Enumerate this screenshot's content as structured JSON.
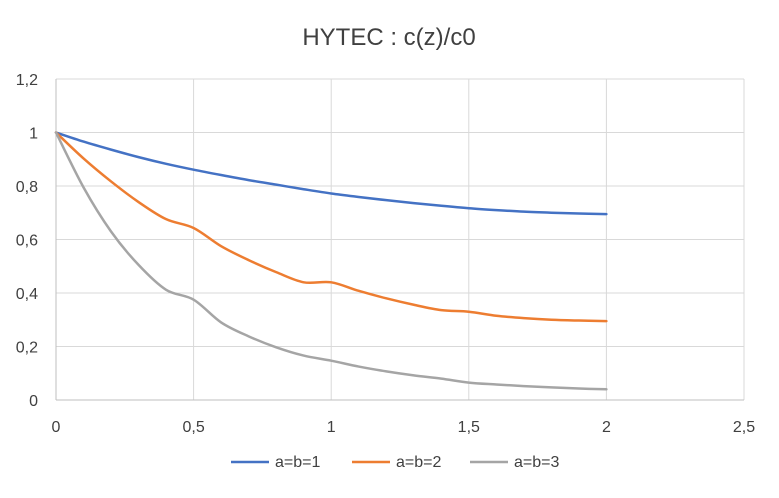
{
  "chart_data": {
    "type": "line",
    "title": "HYTEC : c(z)/c0",
    "xlabel": "",
    "ylabel": "",
    "xlim": [
      0,
      2.5
    ],
    "ylim": [
      0,
      1.2
    ],
    "x_ticks": [
      0,
      0.5,
      1,
      1.5,
      2,
      2.5
    ],
    "x_tick_labels": [
      "0",
      "0,5",
      "1",
      "1,5",
      "2",
      "2,5"
    ],
    "y_ticks": [
      0,
      0.2,
      0.4,
      0.6,
      0.8,
      1,
      1.2
    ],
    "y_tick_labels": [
      "0",
      "0,2",
      "0,4",
      "0,6",
      "0,8",
      "1",
      "1,2"
    ],
    "grid": "vertical and horizontal major gridlines",
    "legend_position": "bottom",
    "x": [
      0,
      0.1,
      0.2,
      0.3,
      0.4,
      0.5,
      0.6,
      0.7,
      0.8,
      0.9,
      1.0,
      1.1,
      1.2,
      1.3,
      1.4,
      1.5,
      1.6,
      1.7,
      1.8,
      1.9,
      2.0
    ],
    "series": [
      {
        "name": "a=b=1",
        "color": "#4472C4",
        "values": [
          1.0,
          0.966,
          0.936,
          0.908,
          0.883,
          0.861,
          0.841,
          0.822,
          0.805,
          0.788,
          0.772,
          0.759,
          0.747,
          0.736,
          0.726,
          0.717,
          0.71,
          0.704,
          0.7,
          0.697,
          0.695
        ]
      },
      {
        "name": "a=b=2",
        "color": "#ED7D31",
        "values": [
          1.0,
          0.903,
          0.817,
          0.74,
          0.676,
          0.643,
          0.575,
          0.523,
          0.478,
          0.44,
          0.44,
          0.408,
          0.38,
          0.356,
          0.336,
          0.33,
          0.315,
          0.306,
          0.3,
          0.297,
          0.295
        ]
      },
      {
        "name": "a=b=3",
        "color": "#A5A5A5",
        "values": [
          1.0,
          0.795,
          0.63,
          0.505,
          0.412,
          0.375,
          0.29,
          0.238,
          0.197,
          0.166,
          0.147,
          0.125,
          0.107,
          0.092,
          0.08,
          0.065,
          0.058,
          0.052,
          0.047,
          0.043,
          0.04
        ]
      }
    ]
  }
}
